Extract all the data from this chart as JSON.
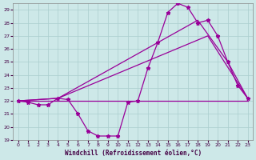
{
  "xlabel": "Windchill (Refroidissement éolien,°C)",
  "xlim": [
    -0.5,
    23.5
  ],
  "ylim": [
    19,
    29.5
  ],
  "xticks": [
    0,
    1,
    2,
    3,
    4,
    5,
    6,
    7,
    8,
    9,
    10,
    11,
    12,
    13,
    14,
    15,
    16,
    17,
    18,
    19,
    20,
    21,
    22,
    23
  ],
  "yticks": [
    19,
    20,
    21,
    22,
    23,
    24,
    25,
    26,
    27,
    28,
    29
  ],
  "background_color": "#cde8e8",
  "grid_color": "#aacece",
  "line_color": "#990099",
  "line1_x": [
    0,
    1,
    2,
    3,
    4,
    5,
    6,
    7,
    8,
    9,
    10,
    11,
    12,
    13,
    14,
    15,
    16,
    17,
    18,
    19,
    20,
    21,
    22,
    23
  ],
  "line1_y": [
    22.0,
    21.9,
    21.7,
    21.7,
    22.2,
    22.1,
    21.0,
    19.7,
    19.3,
    19.3,
    19.3,
    21.9,
    22.0,
    24.5,
    26.5,
    28.8,
    29.5,
    29.2,
    28.0,
    28.2,
    27.0,
    25.0,
    23.2,
    22.2
  ],
  "line2_x": [
    0,
    23
  ],
  "line2_y": [
    22.0,
    22.0
  ],
  "line3_x": [
    0,
    4,
    19,
    23
  ],
  "line3_y": [
    22.0,
    22.2,
    27.0,
    22.2
  ],
  "line4_x": [
    0,
    4,
    18,
    21,
    23
  ],
  "line4_y": [
    22.0,
    22.2,
    28.2,
    25.0,
    22.2
  ]
}
